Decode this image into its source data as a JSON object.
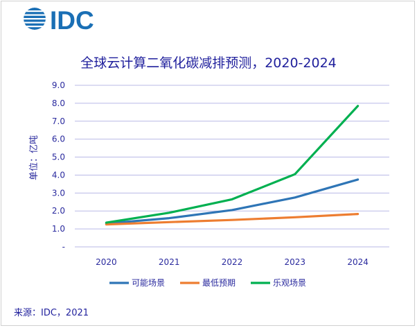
{
  "logo_text": "IDC",
  "chart_data": {
    "type": "line",
    "title": "全球云计算二氧化碳减排预测，2020-2024",
    "ylabel": "单位：亿吨",
    "xlabel": "",
    "categories": [
      "2020",
      "2021",
      "2022",
      "2023",
      "2024"
    ],
    "ylim": [
      0,
      9
    ],
    "yticks": [
      "-",
      "1.0",
      "2.0",
      "3.0",
      "4.0",
      "5.0",
      "6.0",
      "7.0",
      "8.0",
      "9.0"
    ],
    "grid": true,
    "legend_position": "bottom",
    "series": [
      {
        "name": "可能场景",
        "color": "#2e75b6",
        "values": [
          1.3,
          1.6,
          2.05,
          2.75,
          3.75
        ]
      },
      {
        "name": "最低预期",
        "color": "#ed7d31",
        "values": [
          1.25,
          1.38,
          1.5,
          1.65,
          1.83
        ]
      },
      {
        "name": "乐观场景",
        "color": "#00b050",
        "values": [
          1.35,
          1.9,
          2.65,
          4.05,
          7.85
        ]
      }
    ]
  },
  "source": "来源：IDC，2021"
}
